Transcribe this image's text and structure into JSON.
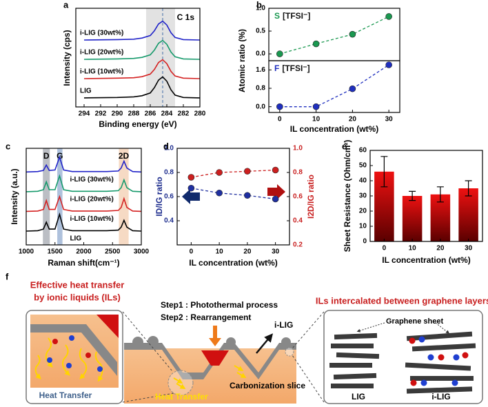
{
  "chart_data": [
    {
      "type": "line",
      "panel": "a",
      "annotation": "C 1s",
      "xlabel": "Binding energy (eV)",
      "ylabel": "Intensity (cps)",
      "xlim": [
        295,
        280
      ],
      "xticks": [
        294,
        292,
        290,
        288,
        286,
        284,
        282,
        280
      ],
      "ylim": [
        0,
        4.6
      ],
      "highlight_range": [
        286.5,
        283
      ],
      "reference_line": 284.5,
      "series_labels": true,
      "x": [
        294,
        290,
        288,
        287,
        286,
        285.5,
        285,
        284.5,
        284,
        283.5,
        283,
        282,
        280
      ],
      "series": [
        {
          "name": "LIG",
          "color": "#000000",
          "values": [
            0.42,
            0.44,
            0.47,
            0.52,
            0.65,
            0.9,
            1.25,
            1.4,
            1.2,
            0.8,
            0.55,
            0.44,
            0.42
          ]
        },
        {
          "name": "i-LIG (10wt%)",
          "color": "#d42020",
          "values": [
            1.32,
            1.34,
            1.36,
            1.41,
            1.53,
            1.75,
            2.07,
            2.2,
            2.02,
            1.66,
            1.44,
            1.34,
            1.32
          ]
        },
        {
          "name": "i-LIG (20wt%)",
          "color": "#14996a",
          "values": [
            2.22,
            2.24,
            2.26,
            2.31,
            2.43,
            2.65,
            2.97,
            3.1,
            2.92,
            2.56,
            2.34,
            2.24,
            2.22
          ]
        },
        {
          "name": "i-LIG (30wt%)",
          "color": "#1f22c8",
          "values": [
            3.12,
            3.14,
            3.16,
            3.21,
            3.33,
            3.55,
            3.87,
            4.0,
            3.82,
            3.46,
            3.24,
            3.14,
            3.12
          ]
        }
      ]
    },
    {
      "type": "line",
      "panel": "b",
      "ylabel": "Atomic ratio (%)",
      "annotation": "[TFSI⁻]",
      "dashed": true,
      "markers": true,
      "xlim": [
        -3,
        33
      ],
      "ylim": [
        -0.15,
        1.0
      ],
      "yticks": [
        {
          "value": 0,
          "label": "0.0"
        },
        {
          "value": 0.5,
          "label": "0.5"
        },
        {
          "value": 1,
          "label": "1.0"
        }
      ],
      "x": [
        0,
        10,
        20,
        30
      ],
      "series": [
        {
          "name": "S",
          "color": "#1a9850",
          "values": [
            0,
            0.22,
            0.43,
            0.82
          ]
        }
      ]
    },
    {
      "type": "line",
      "xlabel": "IL concentration (wt%)",
      "annotation": "[TFSI⁻]",
      "dashed": true,
      "markers": true,
      "xlim": [
        -3,
        33
      ],
      "xticks": [
        0,
        10,
        20,
        30
      ],
      "ylim": [
        -0.25,
        2.0
      ],
      "yticks": [
        {
          "value": 0,
          "label": "0.0"
        },
        0.8,
        1.6
      ],
      "x": [
        0,
        10,
        20,
        30
      ],
      "series": [
        {
          "name": "F",
          "color": "#1f2fbf",
          "values": [
            0,
            0,
            0.78,
            1.82
          ]
        }
      ]
    },
    {
      "type": "line",
      "panel": "c",
      "xlabel": "Raman shift(cm⁻¹)",
      "ylabel": "Intensity (a.u.)",
      "series_labels": true,
      "xlim": [
        1000,
        3000
      ],
      "xticks": [
        1000,
        1500,
        2000,
        2500,
        3000
      ],
      "ylim": [
        -0.3,
        4.6
      ],
      "highlights": [
        {
          "label": "D",
          "range": [
            1290,
            1410
          ],
          "color": "#a4a8b0"
        },
        {
          "label": "G",
          "range": [
            1540,
            1630
          ],
          "color": "#93acd0"
        },
        {
          "label": "2D",
          "range": [
            2610,
            2780
          ],
          "color": "#f3ceb0"
        }
      ],
      "x": [
        1000,
        1200,
        1300,
        1350,
        1400,
        1500,
        1580,
        1650,
        1800,
        2400,
        2600,
        2650,
        2700,
        2750,
        2850,
        3000
      ],
      "series": [
        {
          "name": "LIG",
          "color": "#000000",
          "values": [
            0.4,
            0.42,
            0.5,
            0.85,
            0.5,
            0.5,
            1.25,
            0.5,
            0.42,
            0.42,
            0.45,
            0.6,
            0.95,
            0.6,
            0.42,
            0.4
          ]
        },
        {
          "name": "i-LIG (10wt%)",
          "color": "#d42020",
          "values": [
            1.4,
            1.42,
            1.5,
            1.95,
            1.5,
            1.5,
            2.15,
            1.5,
            1.42,
            1.42,
            1.45,
            1.6,
            2.05,
            1.6,
            1.42,
            1.4
          ]
        },
        {
          "name": "i-LIG (20wt%)",
          "color": "#14996a",
          "values": [
            2.4,
            2.42,
            2.5,
            2.9,
            2.5,
            2.5,
            3.2,
            2.5,
            2.42,
            2.42,
            2.45,
            2.6,
            3.0,
            2.6,
            2.42,
            2.4
          ]
        },
        {
          "name": "i-LIG (30wt%)",
          "color": "#1f22c8",
          "values": [
            3.4,
            3.42,
            3.48,
            3.75,
            3.48,
            3.5,
            4.15,
            3.5,
            3.42,
            3.42,
            3.45,
            3.6,
            3.95,
            3.6,
            3.42,
            3.4
          ]
        }
      ]
    },
    {
      "type": "line",
      "panel": "d",
      "xlabel": "IL concentration (wt%)",
      "ylabel": "ID/IG ratio",
      "y2label": "I2D/IG ratio",
      "dashed": true,
      "markers": true,
      "ycolor": "#1a2a8c",
      "y2color": "#c81e1e",
      "xlim": [
        -5,
        35
      ],
      "xticks": [
        0,
        10,
        20,
        30
      ],
      "ylim": [
        0.2,
        1.0
      ],
      "yticks": [
        0.4,
        0.6,
        0.8,
        {
          "value": 1,
          "label": "1.0"
        }
      ],
      "y2lim": [
        0.2,
        1.0
      ],
      "y2ticks": [
        0.2,
        0.4,
        0.6,
        0.8,
        {
          "value": 1,
          "label": "1.0"
        }
      ],
      "x": [
        0,
        10,
        20,
        30
      ],
      "series": [
        {
          "color": "#1f2fa0",
          "values": [
            0.67,
            0.63,
            0.61,
            0.58
          ]
        },
        {
          "color": "#cc1f1f",
          "axis": "y2",
          "values": [
            0.76,
            0.8,
            0.81,
            0.82
          ]
        }
      ]
    },
    {
      "type": "bar",
      "panel": "e",
      "xlabel": "IL concentration (wt%)",
      "ylabel": "Sheet Resistance (Ohm/cm²)",
      "categories": [
        "0",
        "10",
        "20",
        "30"
      ],
      "values": [
        46,
        30,
        31,
        35
      ],
      "errors": [
        10,
        3,
        5,
        5
      ],
      "color": "#ee1111",
      "ylim": [
        0,
        60
      ],
      "yticks": [
        0,
        10,
        20,
        30,
        40,
        50,
        60
      ]
    }
  ],
  "diagram": {
    "panel": "f",
    "left_title": [
      "Effective heat transfer",
      "by ionic liquids (ILs)"
    ],
    "left_inset_label": "Heat Transfer",
    "steps": [
      "Step1 : Photothermal process",
      "Step2 : Rearrangement"
    ],
    "product_label": "i-LIG",
    "heat_label": "Heat Transfer",
    "slice_label": "Carbonization slice",
    "right_title": "ILs intercalated between graphene layers",
    "sheet_label": "Graphene sheet",
    "right_labels": [
      "LIG",
      "i-LIG"
    ]
  }
}
